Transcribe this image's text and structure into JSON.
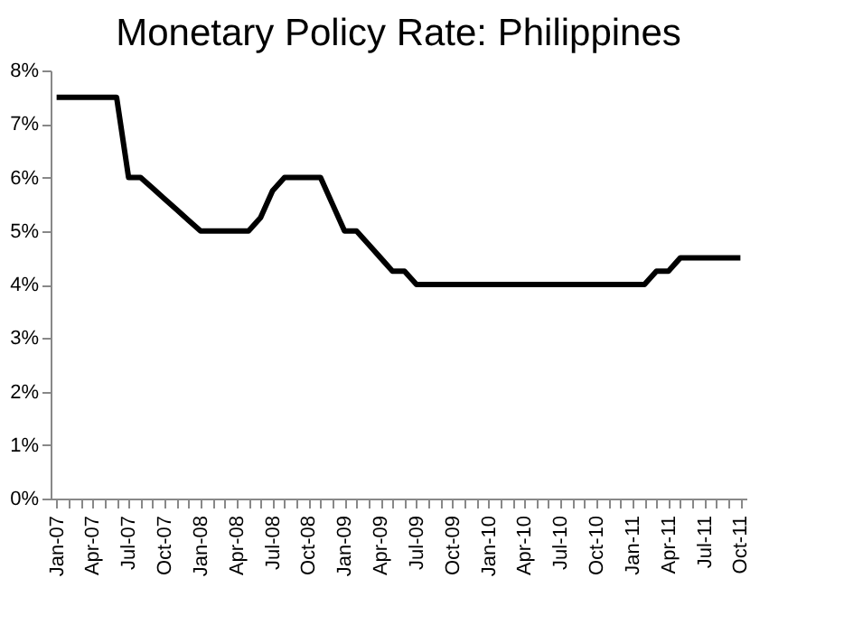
{
  "chart_data": {
    "type": "line",
    "title": "Monetary Policy Rate: Philippines",
    "categories": [
      "Jan-07",
      null,
      null,
      "Apr-07",
      null,
      null,
      "Jul-07",
      null,
      null,
      "Oct-07",
      null,
      null,
      "Jan-08",
      null,
      null,
      "Apr-08",
      null,
      null,
      "Jul-08",
      null,
      null,
      "Oct-08",
      null,
      null,
      "Jan-09",
      null,
      null,
      "Apr-09",
      null,
      null,
      "Jul-09",
      null,
      null,
      "Oct-09",
      null,
      null,
      "Jan-10",
      null,
      null,
      "Apr-10",
      null,
      null,
      "Jul-10",
      null,
      null,
      "Oct-10",
      null,
      null,
      "Jan-11",
      null,
      null,
      "Apr-11",
      null,
      null,
      "Jul-11",
      null,
      null,
      "Oct-11"
    ],
    "series": [
      {
        "color": "#000000",
        "values": [
          7.5,
          7.5,
          7.5,
          7.5,
          7.5,
          7.5,
          6.0,
          6.0,
          5.8,
          5.6,
          5.4,
          5.2,
          5.0,
          5.0,
          5.0,
          5.0,
          5.0,
          5.25,
          5.75,
          6.0,
          6.0,
          6.0,
          6.0,
          5.5,
          5.0,
          5.0,
          4.75,
          4.5,
          4.25,
          4.25,
          4.0,
          4.0,
          4.0,
          4.0,
          4.0,
          4.0,
          4.0,
          4.0,
          4.0,
          4.0,
          4.0,
          4.0,
          4.0,
          4.0,
          4.0,
          4.0,
          4.0,
          4.0,
          4.0,
          4.0,
          4.25,
          4.25,
          4.5,
          4.5,
          4.5,
          4.5,
          4.5,
          4.5
        ]
      }
    ],
    "ylim": [
      0,
      8
    ],
    "yticks": [
      {
        "value": 0,
        "label": "0%"
      },
      {
        "value": 1,
        "label": "1%"
      },
      {
        "value": 2,
        "label": "2%"
      },
      {
        "value": 3,
        "label": "3%"
      },
      {
        "value": 4,
        "label": "4%"
      },
      {
        "value": 5,
        "label": "5%"
      },
      {
        "value": 6,
        "label": "6%"
      },
      {
        "value": 7,
        "label": "7%"
      },
      {
        "value": 8,
        "label": "8%"
      }
    ],
    "grid": false,
    "marker": "none",
    "line_style": "solid"
  }
}
